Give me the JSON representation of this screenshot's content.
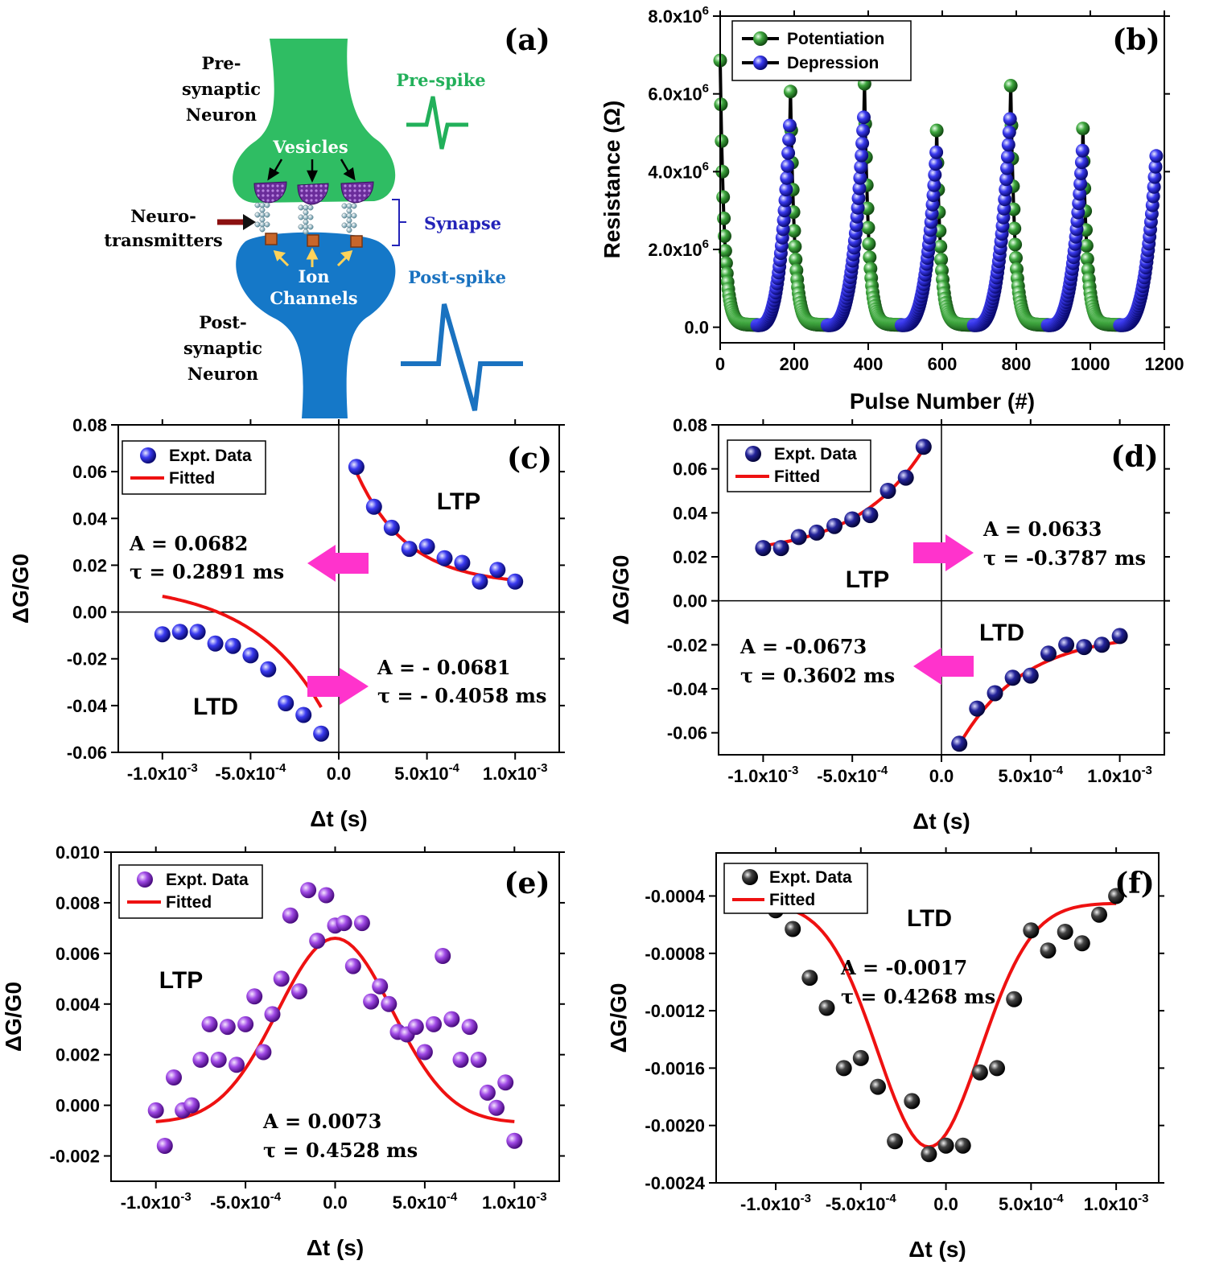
{
  "colors": {
    "presynaptic": "#2fbd63",
    "postsynaptic": "#1578c8",
    "prespike": "#22b05a",
    "postspike": "#1a72c0",
    "synapse_label": "#2323b8",
    "potentiation": "#2e8b2e",
    "depression": "#2323e0",
    "fit": "#ee1111",
    "arrow": "#ff33cc",
    "purple_pts": "#9a3bdc",
    "navy_pts": "#1c1c8c",
    "black_pts": "#111111"
  },
  "diagram": {
    "panel_label": "(a)",
    "pre_neuron": [
      "Pre-",
      "synaptic",
      "Neuron"
    ],
    "post_neuron": [
      "Post-",
      "synaptic",
      "Neuron"
    ],
    "vesicles": "Vesicles",
    "neurotransmitters": [
      "Neuro-",
      "transmitters"
    ],
    "synapse": "Synapse",
    "ion_channels": [
      "Ion",
      "Channels"
    ],
    "pre_spike": "Pre-spike",
    "post_spike": "Post-spike"
  },
  "chart_data": [
    {
      "panel": "(b)",
      "type": "scatter",
      "xlabel": "Pulse Number (#)",
      "ylabel": "Resistance (Ω)",
      "xlim": [
        0,
        1200
      ],
      "ylim": [
        -400000,
        8000000
      ],
      "xticks": [
        "0",
        "200",
        "400",
        "600",
        "800",
        "1000",
        "1200"
      ],
      "yticks": [
        "0.0",
        "2.0x10^6",
        "4.0x10^6",
        "6.0x10^6",
        "8.0x10^6"
      ],
      "legend": [
        "Potentiation",
        "Depression"
      ],
      "legend_position": "top-left",
      "cycles": [
        {
          "start": 0,
          "peak": 6800000
        },
        {
          "start": 190,
          "peak": 6000000
        },
        {
          "start": 390,
          "peak": 6200000
        },
        {
          "start": 585,
          "peak": 5000000
        },
        {
          "start": 785,
          "peak": 6150000
        },
        {
          "start": 980,
          "peak": 5050000
        }
      ],
      "cycle_pulses": 100,
      "end_peak": 5050000
    },
    {
      "panel": "(c)",
      "type": "scatter",
      "xlabel": "Δt (s)",
      "ylabel": "ΔG/G0",
      "xlim": [
        -0.00125,
        0.00125
      ],
      "ylim": [
        -0.06,
        0.08
      ],
      "xticks": [
        "-1.0x10^-3",
        "-5.0x10^-4",
        "0.0",
        "5.0x10^-4",
        "1.0x10^-3"
      ],
      "yticks": [
        "-0.06",
        "-0.04",
        "-0.02",
        "0.00",
        "0.02",
        "0.04",
        "0.06",
        "0.08"
      ],
      "legend": [
        "Expt. Data",
        "Fitted"
      ],
      "series": [
        {
          "name": "Expt. Data",
          "x": [
            0.0001,
            0.0002,
            0.0003,
            0.0004,
            0.0005,
            0.0006,
            0.0007,
            0.0008,
            0.0009,
            0.001
          ],
          "y": [
            0.062,
            0.045,
            0.036,
            0.027,
            0.028,
            0.023,
            0.021,
            0.013,
            0.018,
            0.013
          ]
        },
        {
          "name": "Expt. Data",
          "x": [
            -0.001,
            -0.0009,
            -0.0008,
            -0.0007,
            -0.0006,
            -0.0005,
            -0.0004,
            -0.0003,
            -0.0002,
            -0.0001
          ],
          "y": [
            -0.0095,
            -0.0085,
            -0.0085,
            -0.0135,
            -0.0145,
            -0.0185,
            -0.0245,
            -0.039,
            -0.044,
            -0.052
          ]
        }
      ],
      "fits": [
        {
          "name": "Fitted",
          "A": 0.0682,
          "tau_ms": 0.2891,
          "x0": 0.0001,
          "x1": 0.001,
          "offset": 0.0115
        },
        {
          "name": "Fitted",
          "A": -0.0681,
          "tau_ms": -0.4058,
          "x0": -0.001,
          "x1": -0.0001,
          "offset": 0.0125
        }
      ],
      "annotations": [
        "LTP",
        "LTD",
        "A = 0.0682",
        "τ  = 0.2891 ms",
        "A = - 0.0681",
        "τ  = - 0.4058 ms"
      ]
    },
    {
      "panel": "(d)",
      "type": "scatter",
      "xlabel": "Δt (s)",
      "ylabel": "ΔG/G0",
      "xlim": [
        -0.00125,
        0.00125
      ],
      "ylim": [
        -0.07,
        0.08
      ],
      "xticks": [
        "-1.0x10^-3",
        "-5.0x10^-4",
        "0.0",
        "5.0x10^-4",
        "1.0x10^-3"
      ],
      "yticks": [
        "-0.06",
        "-0.04",
        "-0.02",
        "0.00",
        "0.02",
        "0.04",
        "0.06",
        "0.08"
      ],
      "legend": [
        "Expt. Data",
        "Fitted"
      ],
      "series": [
        {
          "name": "Expt. Data",
          "x": [
            -0.001,
            -0.0009,
            -0.0008,
            -0.0007,
            -0.0006,
            -0.0005,
            -0.0004,
            -0.0003,
            -0.0002,
            -0.0001
          ],
          "y": [
            0.024,
            0.024,
            0.029,
            0.031,
            0.034,
            0.037,
            0.039,
            0.05,
            0.056,
            0.07
          ]
        },
        {
          "name": "Expt. Data",
          "x": [
            0.0001,
            0.0002,
            0.0003,
            0.0004,
            0.0005,
            0.0006,
            0.0007,
            0.0008,
            0.0009,
            0.001
          ],
          "y": [
            -0.065,
            -0.049,
            -0.042,
            -0.035,
            -0.034,
            -0.024,
            -0.02,
            -0.021,
            -0.02,
            -0.016
          ]
        }
      ],
      "fits": [
        {
          "name": "Fitted",
          "A": 0.0633,
          "tau_ms": -0.3787,
          "x0": -0.001,
          "x1": -0.0001,
          "offset": 0.0205
        },
        {
          "name": "Fitted",
          "A": -0.0673,
          "tau_ms": 0.3602,
          "x0": 0.0001,
          "x1": 0.001,
          "offset": -0.0145
        }
      ],
      "annotations": [
        "LTP",
        "LTD",
        "A = 0.0633",
        "τ  = -0.3787 ms",
        "A = -0.0673",
        "τ  = 0.3602 ms"
      ]
    },
    {
      "panel": "(e)",
      "type": "scatter",
      "xlabel": "Δt (s)",
      "ylabel": "ΔG/G0",
      "xlim": [
        -0.00125,
        0.00125
      ],
      "ylim": [
        -0.003,
        0.01
      ],
      "xticks": [
        "-1.0x10^-3",
        "-5.0x10^-4",
        "0.0",
        "5.0x10^-4",
        "1.0x10^-3"
      ],
      "yticks": [
        "-0.002",
        "0.000",
        "0.002",
        "0.004",
        "0.006",
        "0.008",
        "0.010"
      ],
      "legend": [
        "Expt. Data",
        "Fitted"
      ],
      "series": [
        {
          "name": "Expt. Data",
          "x": [
            -0.001,
            -0.00095,
            -0.0009,
            -0.00085,
            -0.0008,
            -0.00075,
            -0.0007,
            -0.00065,
            -0.0006,
            -0.00055,
            -0.0005,
            -0.00045,
            -0.0004,
            -0.00035,
            -0.0003,
            -0.00025,
            -0.0002,
            -0.00015,
            -0.0001,
            -5e-05,
            0.0,
            5e-05,
            0.0001,
            0.00015,
            0.0002,
            0.00025,
            0.0003,
            0.00035,
            0.0004,
            0.00045,
            0.0005,
            0.00055,
            0.0006,
            0.00065,
            0.0007,
            0.00075,
            0.0008,
            0.00085,
            0.0009,
            0.00095,
            0.001
          ],
          "y": [
            -0.0002,
            -0.0016,
            0.0011,
            -0.0002,
            0.0,
            0.0018,
            0.0032,
            0.0018,
            0.0031,
            0.0016,
            0.0032,
            0.0043,
            0.0021,
            0.0036,
            0.005,
            0.0075,
            0.0045,
            0.0085,
            0.0065,
            0.0083,
            0.0071,
            0.0072,
            0.0055,
            0.0072,
            0.0041,
            0.0047,
            0.004,
            0.0029,
            0.0028,
            0.0031,
            0.0021,
            0.0032,
            0.0059,
            0.0034,
            0.0018,
            0.0031,
            0.0018,
            0.0005,
            -0.0001,
            0.0009,
            -0.0014
          ]
        }
      ],
      "fits": [
        {
          "name": "Fitted",
          "A": 0.0073,
          "tau_ms": 0.4528,
          "x0": -0.001,
          "x1": 0.001,
          "offset": -0.0007,
          "center": 0.0
        }
      ],
      "annotations": [
        "LTP",
        "A =  0.0073",
        "τ  = 0.4528 ms"
      ]
    },
    {
      "panel": "(f)",
      "type": "scatter",
      "xlabel": "Δt (s)",
      "ylabel": "ΔG/G0",
      "xlim": [
        -0.00135,
        0.00125
      ],
      "ylim": [
        -0.0024,
        -0.0001
      ],
      "xticks": [
        "-1.0x10^-3",
        "-5.0x10^-4",
        "0.0",
        "5.0x10^-4",
        "1.0x10^-3"
      ],
      "yticks": [
        "-0.0024",
        "-0.0020",
        "-0.0016",
        "-0.0012",
        "-0.0008",
        "-0.0004"
      ],
      "legend": [
        "Expt. Data",
        "Fitted"
      ],
      "series": [
        {
          "name": "Expt. Data",
          "x": [
            -0.001,
            -0.0009,
            -0.0008,
            -0.0007,
            -0.0006,
            -0.0005,
            -0.0004,
            -0.0003,
            -0.0002,
            -0.0001,
            0.0,
            0.0001,
            0.0002,
            0.0003,
            0.0004,
            0.0005,
            0.0006,
            0.0007,
            0.0008,
            0.0009,
            0.001
          ],
          "y": [
            -0.0005,
            -0.00063,
            -0.00097,
            -0.00118,
            -0.0016,
            -0.00153,
            -0.00173,
            -0.00211,
            -0.00183,
            -0.0022,
            -0.00214,
            -0.00214,
            -0.00163,
            -0.0016,
            -0.00112,
            -0.00064,
            -0.00078,
            -0.00065,
            -0.00073,
            -0.00053,
            -0.0004
          ]
        }
      ],
      "fits": [
        {
          "name": "Fitted",
          "A": -0.0017,
          "tau_ms": 0.4268,
          "x0": -0.001,
          "x1": 0.001,
          "offset": -0.00045,
          "center": -0.0001
        }
      ],
      "annotations": [
        "LTD",
        "A = -0.0017",
        "τ  = 0.4268 ms"
      ]
    }
  ]
}
